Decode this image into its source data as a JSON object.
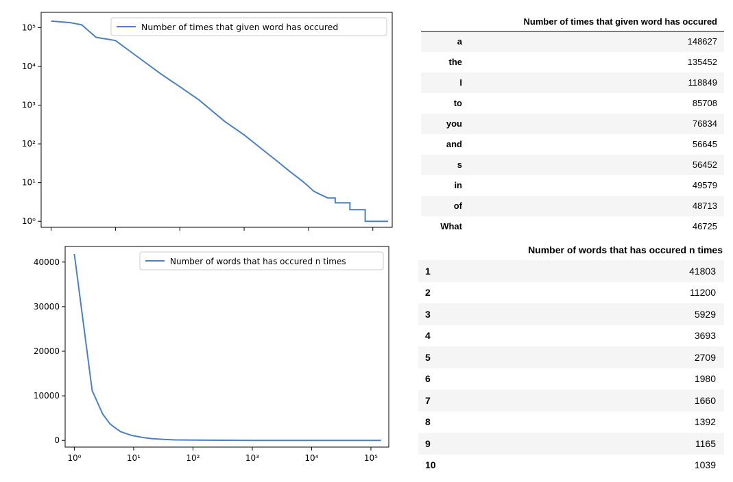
{
  "chart_data": [
    {
      "type": "line",
      "xscale": "log",
      "yscale": "log",
      "xlim": [
        0.7,
        200000
      ],
      "ylim": [
        0.7,
        250000
      ],
      "yticks": [
        1,
        10,
        100,
        1000,
        10000,
        100000
      ],
      "ytick_labels": [
        "10⁰",
        "10¹",
        "10²",
        "10³",
        "10⁴",
        "10⁵"
      ],
      "legend": "top-right",
      "grid": false,
      "series": [
        {
          "name": "Number of times that given word has occured",
          "color": "#4c7fc0",
          "x": [
            1,
            2,
            3,
            5,
            10,
            20,
            50,
            100,
            200,
            500,
            1000,
            2000,
            3000,
            5000,
            8000,
            10000,
            12000,
            15000,
            20000,
            26000,
            26001,
            44000,
            44001,
            76000,
            76001,
            152000,
            152001,
            200000
          ],
          "y": [
            148627,
            135452,
            118849,
            56645,
            46725,
            20000,
            6500,
            3000,
            1350,
            380,
            170,
            68,
            40,
            20,
            11,
            8,
            6,
            5,
            4,
            4,
            3,
            3,
            2,
            2,
            1,
            1,
            1,
            1
          ]
        }
      ]
    },
    {
      "type": "line",
      "xscale": "log",
      "xlim": [
        0.7,
        200000
      ],
      "ylim": [
        -1500,
        43500
      ],
      "yticks": [
        0,
        10000,
        20000,
        30000,
        40000
      ],
      "xticks": [
        1,
        10,
        100,
        1000,
        10000,
        100000
      ],
      "xtick_labels": [
        "10⁰",
        "10¹",
        "10²",
        "10³",
        "10⁴",
        "10⁵"
      ],
      "legend": "top-right",
      "grid": false,
      "series": [
        {
          "name": "Number of words that has occured n times",
          "color": "#4c7fc0",
          "x": [
            1,
            2,
            3,
            4,
            5,
            6,
            7,
            8,
            9,
            10,
            15,
            20,
            30,
            50,
            100,
            1000,
            10000,
            148627
          ],
          "y": [
            41803,
            11200,
            5929,
            3693,
            2709,
            1980,
            1660,
            1392,
            1165,
            1039,
            600,
            400,
            250,
            120,
            60,
            10,
            2,
            1
          ]
        }
      ]
    }
  ],
  "tables": {
    "top": {
      "header": "Number of times that given word has occured",
      "rows": [
        {
          "word": "a",
          "count": "148627"
        },
        {
          "word": "the",
          "count": "135452"
        },
        {
          "word": "I",
          "count": "118849"
        },
        {
          "word": "to",
          "count": "85708"
        },
        {
          "word": "you",
          "count": "76834"
        },
        {
          "word": "and",
          "count": "56645"
        },
        {
          "word": "s",
          "count": "56452"
        },
        {
          "word": "in",
          "count": "49579"
        },
        {
          "word": "of",
          "count": "48713"
        },
        {
          "word": "What",
          "count": "46725"
        }
      ]
    },
    "bottom": {
      "header": "Number of words that has occured n times",
      "rows": [
        {
          "n": "1",
          "count": "41803"
        },
        {
          "n": "2",
          "count": "11200"
        },
        {
          "n": "3",
          "count": "5929"
        },
        {
          "n": "4",
          "count": "3693"
        },
        {
          "n": "5",
          "count": "2709"
        },
        {
          "n": "6",
          "count": "1980"
        },
        {
          "n": "7",
          "count": "1660"
        },
        {
          "n": "8",
          "count": "1392"
        },
        {
          "n": "9",
          "count": "1165"
        },
        {
          "n": "10",
          "count": "1039"
        }
      ]
    }
  }
}
